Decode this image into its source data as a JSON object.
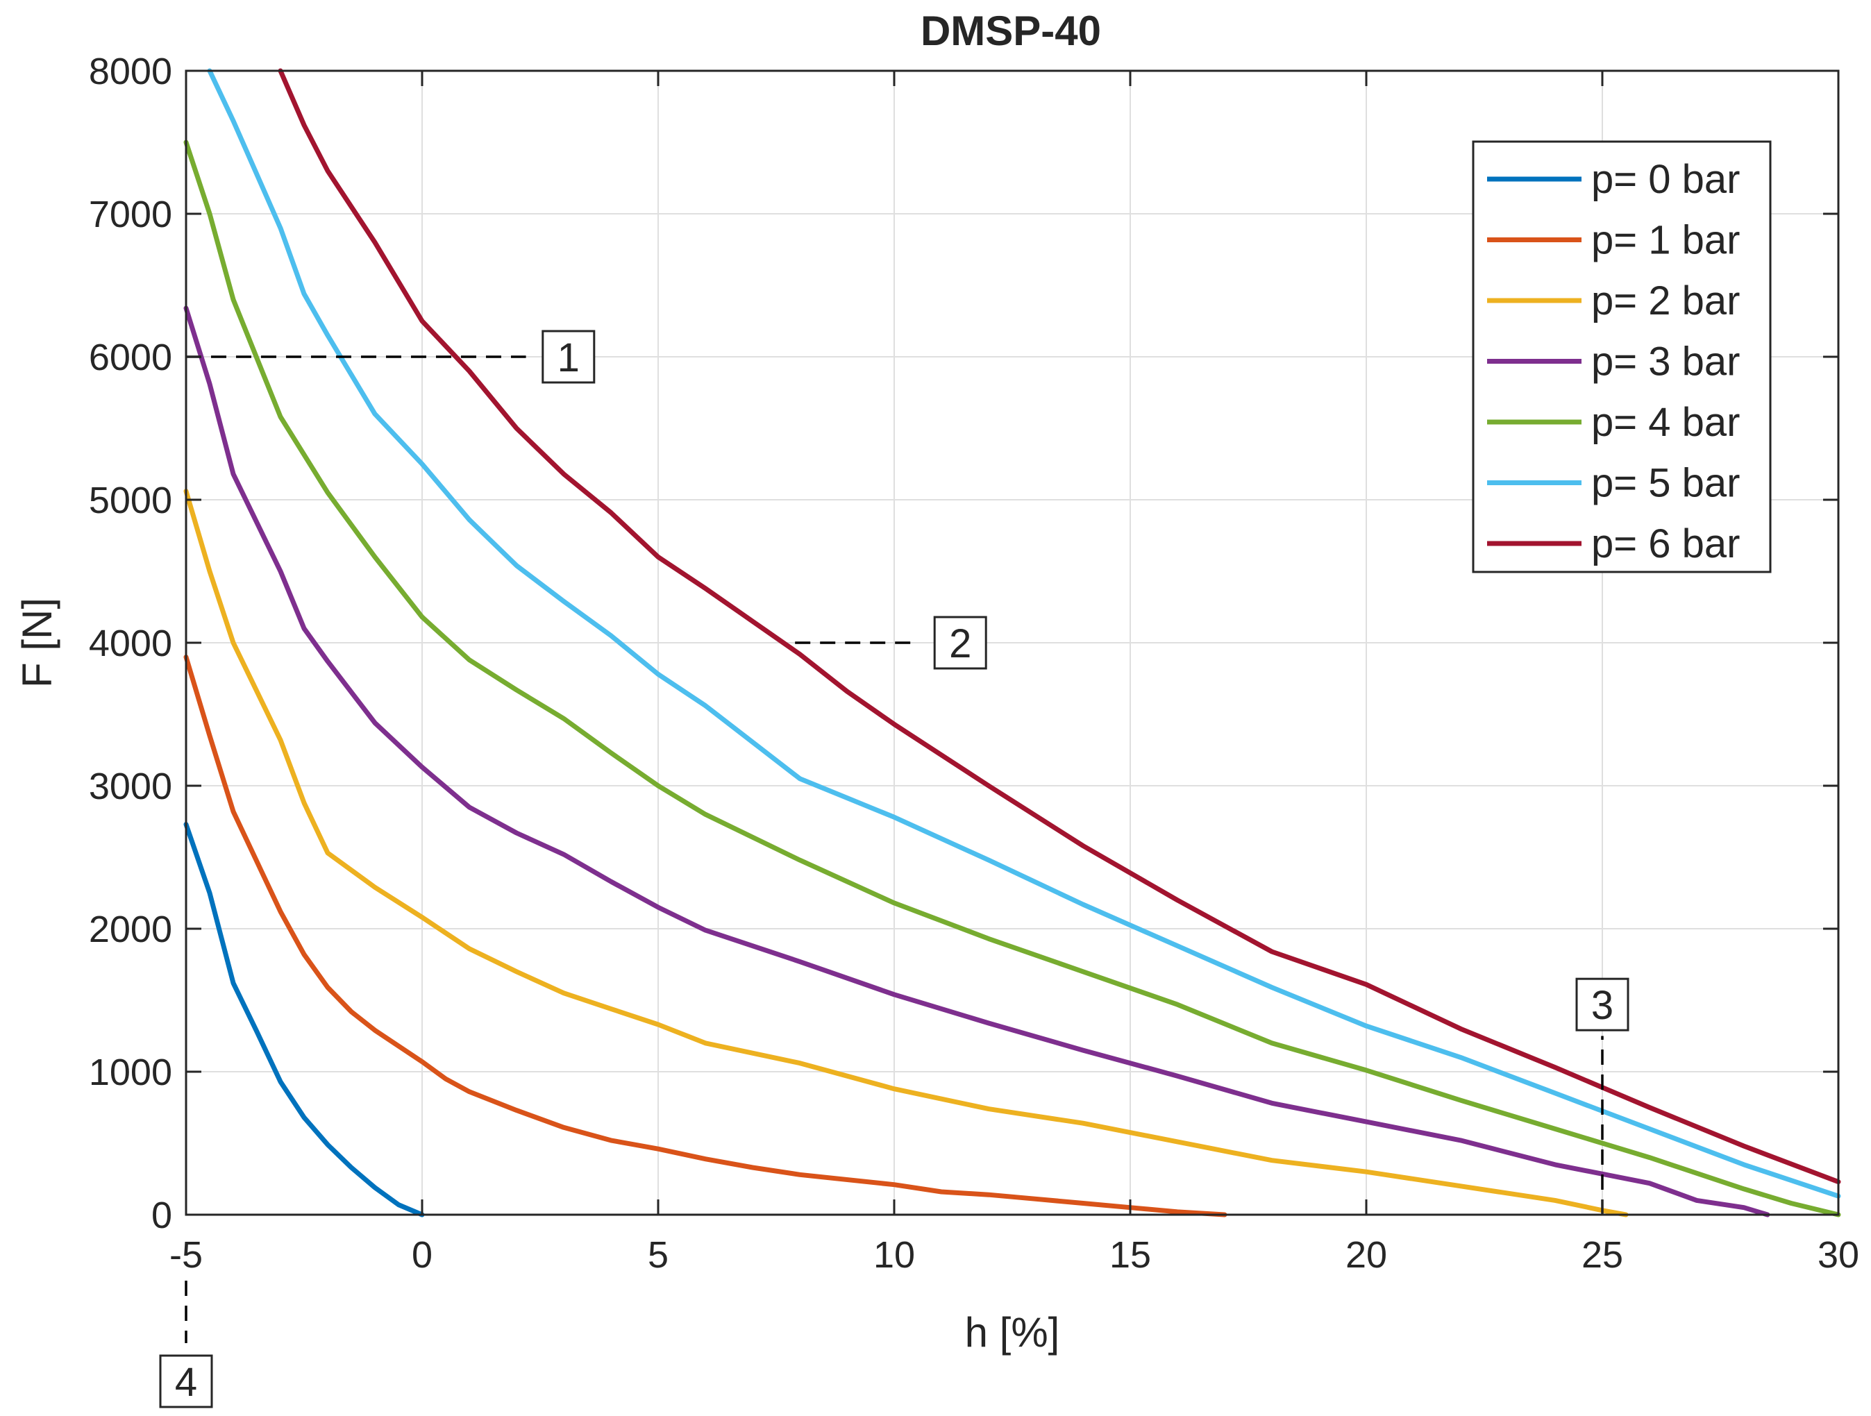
{
  "chart_data": {
    "type": "line",
    "title": "DMSP-40",
    "xlabel": "h [%]",
    "ylabel": "F [N]",
    "xlim": [
      -5,
      30
    ],
    "ylim": [
      0,
      8000
    ],
    "xticks": [
      "-5",
      "0",
      "5",
      "10",
      "15",
      "20",
      "25",
      "30"
    ],
    "yticks": [
      "0",
      "1000",
      "2000",
      "3000",
      "4000",
      "5000",
      "6000",
      "7000",
      "8000"
    ],
    "grid": true,
    "legend_position": "top-right",
    "series": [
      {
        "name": "p= 0 bar",
        "color": "#0072BD",
        "x": [
          -5,
          -4.5,
          -4,
          -3.5,
          -3,
          -2.5,
          -2,
          -1.5,
          -1,
          -0.5,
          0
        ],
        "y": [
          2730,
          2250,
          1620,
          1280,
          930,
          680,
          490,
          330,
          190,
          70,
          0
        ]
      },
      {
        "name": "p= 1 bar",
        "color": "#D95319",
        "x": [
          -5,
          -4.5,
          -4,
          -3,
          -2.5,
          -2,
          -1.5,
          -1,
          0,
          0.5,
          1,
          2,
          3,
          4,
          5,
          6,
          7,
          8,
          10,
          11,
          12,
          13,
          14,
          15,
          16,
          17
        ],
        "y": [
          3900,
          3350,
          2820,
          2120,
          1820,
          1590,
          1420,
          1290,
          1070,
          950,
          860,
          730,
          610,
          520,
          460,
          390,
          330,
          280,
          210,
          160,
          140,
          110,
          80,
          50,
          20,
          0
        ]
      },
      {
        "name": "p= 2 bar",
        "color": "#EDB120",
        "x": [
          -5,
          -4.5,
          -4,
          -3,
          -2.5,
          -2,
          -1,
          0,
          1,
          2,
          3,
          4,
          5,
          6,
          8,
          10,
          12,
          14,
          16,
          18,
          20,
          22,
          24,
          25,
          25.5
        ],
        "y": [
          5060,
          4500,
          4000,
          3320,
          2880,
          2530,
          2290,
          2080,
          1860,
          1700,
          1550,
          1440,
          1330,
          1200,
          1060,
          880,
          740,
          640,
          510,
          380,
          300,
          200,
          100,
          30,
          0
        ]
      },
      {
        "name": "p= 3 bar",
        "color": "#7E2F8E",
        "x": [
          -5,
          -4.5,
          -4,
          -3,
          -2.5,
          -2,
          -1,
          0,
          1,
          2,
          3,
          4,
          5,
          6,
          8,
          10,
          12,
          14,
          16,
          18,
          20,
          22,
          24,
          26,
          27,
          28,
          28.5
        ],
        "y": [
          6340,
          5810,
          5180,
          4500,
          4100,
          3870,
          3440,
          3130,
          2850,
          2670,
          2520,
          2330,
          2150,
          1990,
          1770,
          1540,
          1340,
          1150,
          970,
          780,
          650,
          520,
          350,
          220,
          100,
          50,
          0
        ]
      },
      {
        "name": "p= 4 bar",
        "color": "#77AC30",
        "x": [
          -5,
          -4.5,
          -4,
          -3,
          -2,
          -1,
          0,
          1,
          2,
          3,
          4,
          5,
          6,
          8,
          10,
          12,
          14,
          16,
          18,
          20,
          22,
          24,
          26,
          28,
          29,
          30
        ],
        "y": [
          7500,
          7000,
          6400,
          5580,
          5050,
          4600,
          4180,
          3880,
          3670,
          3470,
          3230,
          3000,
          2800,
          2480,
          2180,
          1930,
          1700,
          1470,
          1200,
          1010,
          800,
          600,
          400,
          180,
          80,
          0
        ]
      },
      {
        "name": "p= 5 bar",
        "color": "#4DBEEE",
        "x": [
          -4.5,
          -4,
          -3,
          -2.5,
          -2,
          -1,
          0,
          1,
          2,
          3,
          4,
          5,
          6,
          8,
          10,
          12,
          14,
          16,
          18,
          20,
          22,
          24,
          26,
          28,
          30
        ],
        "y": [
          8000,
          7650,
          6900,
          6440,
          6150,
          5600,
          5250,
          4860,
          4540,
          4290,
          4050,
          3780,
          3560,
          3050,
          2780,
          2480,
          2170,
          1880,
          1590,
          1320,
          1100,
          850,
          600,
          350,
          130
        ]
      },
      {
        "name": "p= 6 bar",
        "color": "#A2142F",
        "x": [
          -3,
          -2.5,
          -2,
          -1,
          0,
          1,
          2,
          3,
          4,
          5,
          6,
          7,
          8,
          9,
          10,
          12,
          14,
          16,
          18,
          20,
          22,
          24,
          26,
          28,
          30
        ],
        "y": [
          8000,
          7620,
          7300,
          6800,
          6250,
          5900,
          5500,
          5180,
          4910,
          4600,
          4380,
          4150,
          3920,
          3660,
          3430,
          3000,
          2580,
          2200,
          1840,
          1610,
          1300,
          1030,
          750,
          480,
          230
        ]
      }
    ],
    "annotations": [
      {
        "label": "1"
      },
      {
        "label": "2"
      },
      {
        "label": "3"
      },
      {
        "label": "4"
      }
    ]
  }
}
